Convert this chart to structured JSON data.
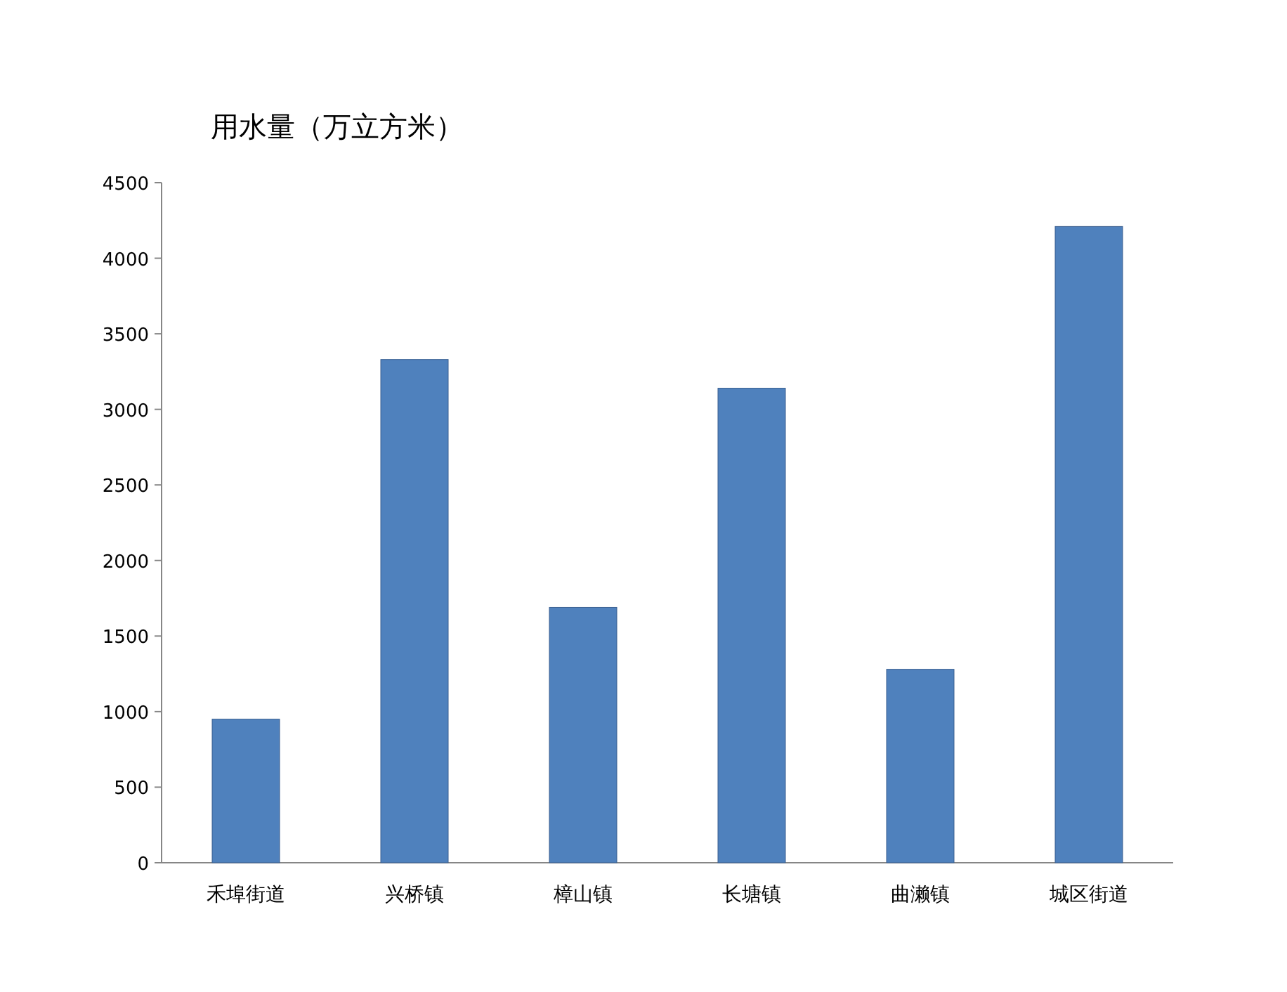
{
  "chart_data": {
    "type": "bar",
    "title": "用水量（万立方米）",
    "categories": [
      "禾埠街道",
      "兴桥镇",
      "樟山镇",
      "长塘镇",
      "曲濑镇",
      "城区街道"
    ],
    "values": [
      950,
      3330,
      1690,
      3140,
      1280,
      4210
    ],
    "color": "#4f81bd",
    "ylim": [
      0,
      4500
    ],
    "yticks": [
      0,
      500,
      1000,
      1500,
      2000,
      2500,
      3000,
      3500,
      4000,
      4500
    ]
  }
}
